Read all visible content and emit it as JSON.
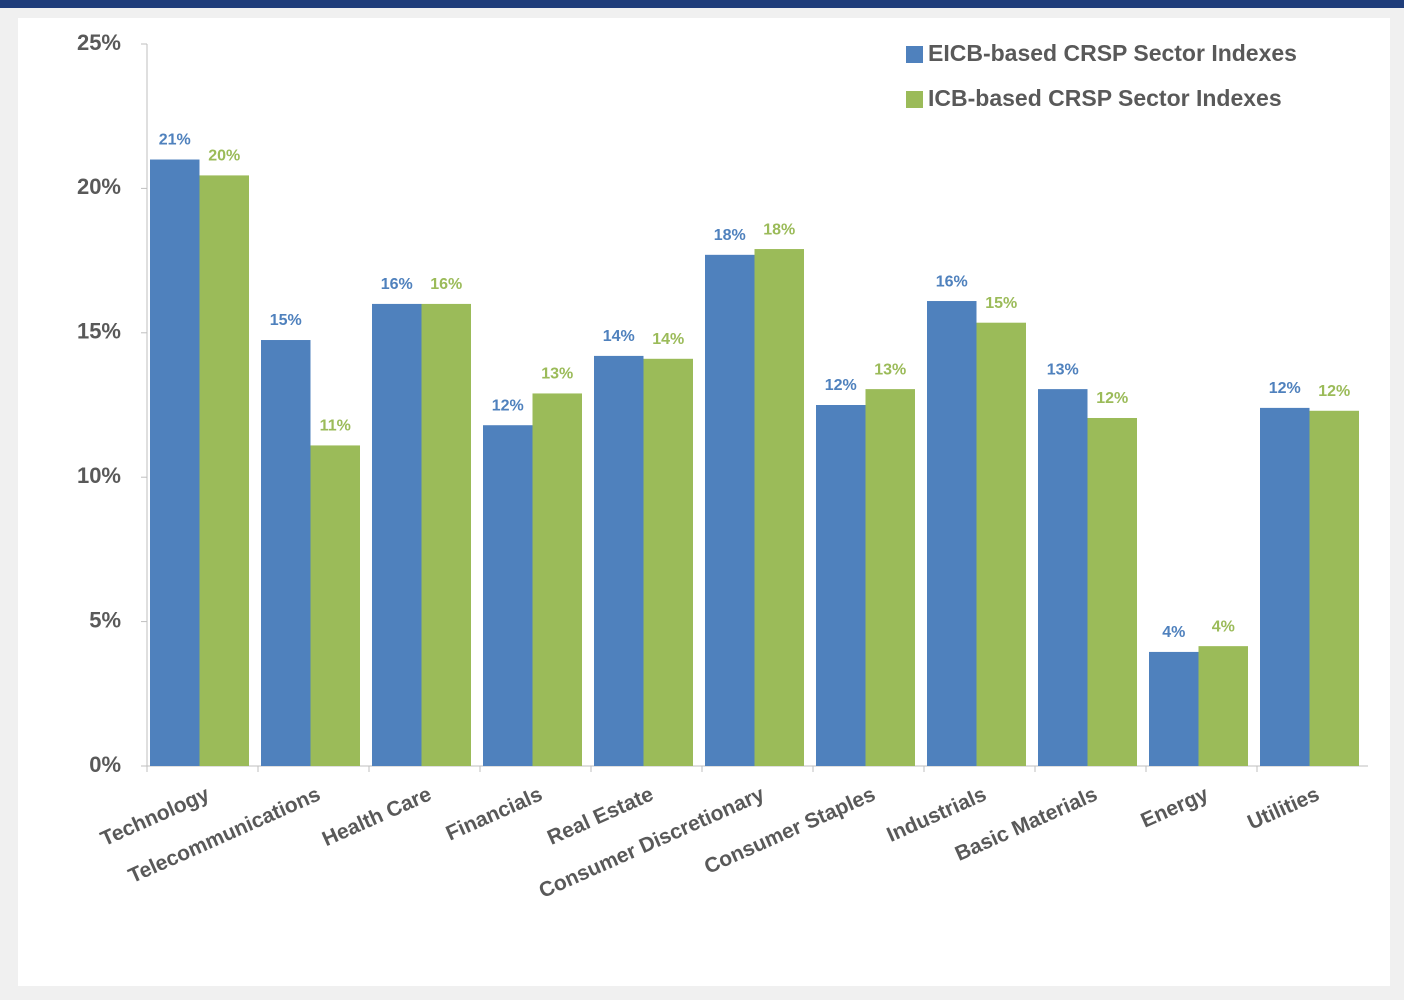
{
  "chart_data": {
    "type": "bar",
    "categories": [
      "Technology",
      "Telecommunications",
      "Health Care",
      "Financials",
      "Real Estate",
      "Consumer Discretionary",
      "Consumer Staples",
      "Industrials",
      "Basic Materials",
      "Energy",
      "Utilities"
    ],
    "series": [
      {
        "name": "EICB-based CRSP Sector Indexes",
        "color": "#4f81bd",
        "values": [
          21.0,
          14.75,
          16.0,
          11.8,
          14.2,
          17.7,
          12.5,
          16.1,
          13.05,
          3.95,
          12.4
        ],
        "value_labels": [
          "21%",
          "15%",
          "16%",
          "12%",
          "14%",
          "18%",
          "12%",
          "16%",
          "13%",
          "4%",
          "12%"
        ]
      },
      {
        "name": "ICB-based CRSP Sector Indexes",
        "color": "#9bbb59",
        "values": [
          20.45,
          11.1,
          16.0,
          12.9,
          14.1,
          17.9,
          13.05,
          15.35,
          12.05,
          4.15,
          12.3
        ],
        "value_labels": [
          "20%",
          "11%",
          "16%",
          "13%",
          "14%",
          "18%",
          "13%",
          "15%",
          "12%",
          "4%",
          "12%"
        ]
      }
    ],
    "ylim": [
      0,
      25
    ],
    "yticks": [
      {
        "value": 0,
        "label": "0%"
      },
      {
        "value": 5,
        "label": "5%"
      },
      {
        "value": 10,
        "label": "10%"
      },
      {
        "value": 15,
        "label": "15%"
      },
      {
        "value": 20,
        "label": "20%"
      },
      {
        "value": 25,
        "label": "25%"
      }
    ],
    "grid": false,
    "legend": "top-right"
  }
}
